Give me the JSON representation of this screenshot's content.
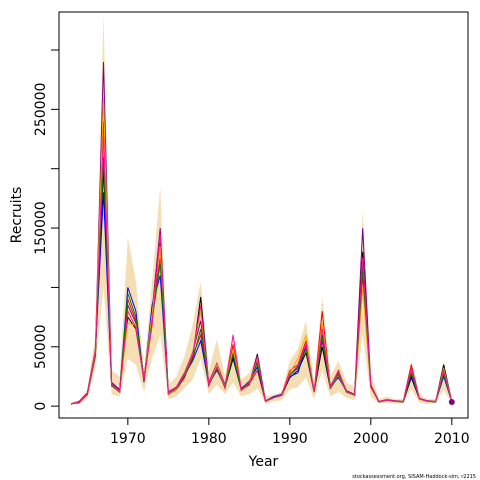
{
  "chart_data": {
    "type": "line",
    "title": "",
    "xlabel": "Year",
    "ylabel": "Recruits",
    "xlim": [
      1961.5,
      2012
    ],
    "ylim": [
      -10000,
      332000
    ],
    "x_ticks": [
      1970,
      1980,
      1990,
      2000,
      2010
    ],
    "y_ticks": [
      0,
      50000,
      150000,
      250000
    ],
    "y_minor_ticks": [
      100000,
      200000,
      300000
    ],
    "grid": false,
    "legend": "none",
    "footnote": "stockassessment.org, SISAM-Haddock-sim, r2215",
    "x": [
      1963,
      1964,
      1965,
      1966,
      1967,
      1968,
      1969,
      1970,
      1971,
      1972,
      1973,
      1974,
      1975,
      1976,
      1977,
      1978,
      1979,
      1980,
      1981,
      1982,
      1983,
      1984,
      1985,
      1986,
      1987,
      1988,
      1989,
      1990,
      1991,
      1992,
      1993,
      1994,
      1995,
      1996,
      1997,
      1998,
      1999,
      2000,
      2001,
      2002,
      2003,
      2004,
      2005,
      2006,
      2007,
      2008,
      2009,
      2010
    ],
    "ci_upper": [
      3000,
      5000,
      14000,
      60000,
      330000,
      30000,
      25000,
      142000,
      105000,
      30000,
      105000,
      185000,
      18000,
      25000,
      42000,
      68000,
      105000,
      30000,
      56000,
      25000,
      62000,
      22000,
      28000,
      45000,
      8000,
      10000,
      12000,
      38000,
      48000,
      72000,
      18000,
      92000,
      25000,
      38000,
      20000,
      16000,
      165000,
      28000,
      6000,
      8000,
      6000,
      6000,
      38000,
      10000,
      6000,
      6000,
      38000,
      6000
    ],
    "ci_lower": [
      1000,
      2000,
      6000,
      32000,
      100000,
      10000,
      8000,
      40000,
      35000,
      12000,
      40000,
      60000,
      6000,
      8000,
      15000,
      22000,
      40000,
      10000,
      18000,
      10000,
      20000,
      8000,
      10000,
      15000,
      2000,
      4000,
      5000,
      14000,
      16000,
      24000,
      6000,
      30000,
      8000,
      12000,
      7000,
      5000,
      60000,
      8000,
      2000,
      3000,
      2000,
      2000,
      14000,
      3000,
      2000,
      2000,
      14000,
      2000
    ],
    "series": [
      {
        "color": "#000000",
        "values": [
          2000,
          3000,
          10000,
          45000,
          200000,
          18000,
          12000,
          75000,
          65000,
          22000,
          70000,
          140000,
          11000,
          15000,
          25000,
          40000,
          92000,
          18000,
          32000,
          16000,
          40000,
          14000,
          18000,
          44000,
          4000,
          7000,
          9000,
          24000,
          30000,
          45000,
          12000,
          50000,
          15000,
          25000,
          12000,
          9000,
          130000,
          16000,
          3500,
          5000,
          4000,
          3500,
          24000,
          6000,
          4000,
          3500,
          35000,
          3500
        ]
      },
      {
        "color": "#800080",
        "values": [
          2000,
          4000,
          11000,
          48000,
          290000,
          20000,
          14000,
          85000,
          70000,
          24000,
          80000,
          150000,
          12000,
          16000,
          28000,
          45000,
          72000,
          20000,
          36000,
          18000,
          45000,
          15000,
          20000,
          38000,
          4500,
          8000,
          10000,
          27000,
          33000,
          50000,
          13000,
          55000,
          17000,
          28000,
          13000,
          10000,
          150000,
          18000,
          4000,
          5500,
          4500,
          4000,
          27000,
          6500,
          4500,
          4000,
          30000,
          4000
        ]
      },
      {
        "color": "#ff0000",
        "values": [
          1800,
          3500,
          9500,
          42000,
          240000,
          17000,
          12000,
          90000,
          72000,
          20000,
          75000,
          125000,
          10000,
          14000,
          24000,
          42000,
          60000,
          17000,
          34000,
          15000,
          52000,
          13000,
          19000,
          30000,
          4000,
          7500,
          9500,
          30000,
          35000,
          55000,
          12000,
          80000,
          16000,
          30000,
          12000,
          9500,
          110000,
          17000,
          3800,
          5200,
          4200,
          3800,
          35000,
          6200,
          4200,
          3800,
          28000,
          3800
        ]
      },
      {
        "color": "#0000ff",
        "values": [
          1900,
          3800,
          10500,
          46000,
          180000,
          19000,
          13000,
          100000,
          80000,
          21000,
          85000,
          110000,
          11500,
          15500,
          26000,
          38000,
          55000,
          19000,
          30000,
          17000,
          42000,
          14500,
          21000,
          33000,
          4200,
          7800,
          9800,
          25000,
          28000,
          50000,
          12500,
          60000,
          16500,
          24000,
          12500,
          9800,
          120000,
          16500,
          3700,
          5100,
          4100,
          3700,
          26000,
          6100,
          4100,
          3700,
          25000,
          3700
        ]
      },
      {
        "color": "#ffa500",
        "values": [
          2100,
          3600,
          9800,
          47000,
          260000,
          18500,
          12500,
          70000,
          68000,
          23000,
          78000,
          135000,
          10500,
          14500,
          27000,
          44000,
          80000,
          18500,
          35000,
          16500,
          48000,
          13500,
          20000,
          40000,
          4100,
          7200,
          9200,
          28000,
          40000,
          60000,
          11500,
          70000,
          15500,
          26000,
          11500,
          9200,
          100000,
          15500,
          3600,
          4900,
          3900,
          3600,
          30000,
          5900,
          3900,
          3600,
          32000,
          3600
        ]
      },
      {
        "color": "#008000",
        "values": [
          2000,
          3400,
          9900,
          44000,
          210000,
          17500,
          11800,
          95000,
          75000,
          21500,
          72000,
          120000,
          10800,
          15200,
          25500,
          39000,
          65000,
          17800,
          31000,
          15800,
          44000,
          13800,
          19500,
          36000,
          3900,
          7400,
          9400,
          26000,
          32000,
          48000,
          11800,
          58000,
          15800,
          27000,
          11800,
          9400,
          115000,
          16200,
          3650,
          5050,
          4050,
          3650,
          28000,
          6050,
          4050,
          3650,
          27000,
          3650
        ]
      },
      {
        "color": "#ff1493",
        "values": [
          1950,
          3450,
          10200,
          45500,
          230000,
          18200,
          12200,
          80000,
          66000,
          22500,
          68000,
          145000,
          11200,
          15800,
          26500,
          43000,
          85000,
          18200,
          33000,
          16200,
          60000,
          14200,
          18500,
          42000,
          4050,
          7100,
          9100,
          27000,
          34000,
          52000,
          12200,
          65000,
          16200,
          29000,
          12200,
          9600,
          125000,
          16800,
          3750,
          5150,
          4150,
          3750,
          32000,
          6150,
          4150,
          3750,
          30000,
          3750
        ]
      }
    ]
  }
}
